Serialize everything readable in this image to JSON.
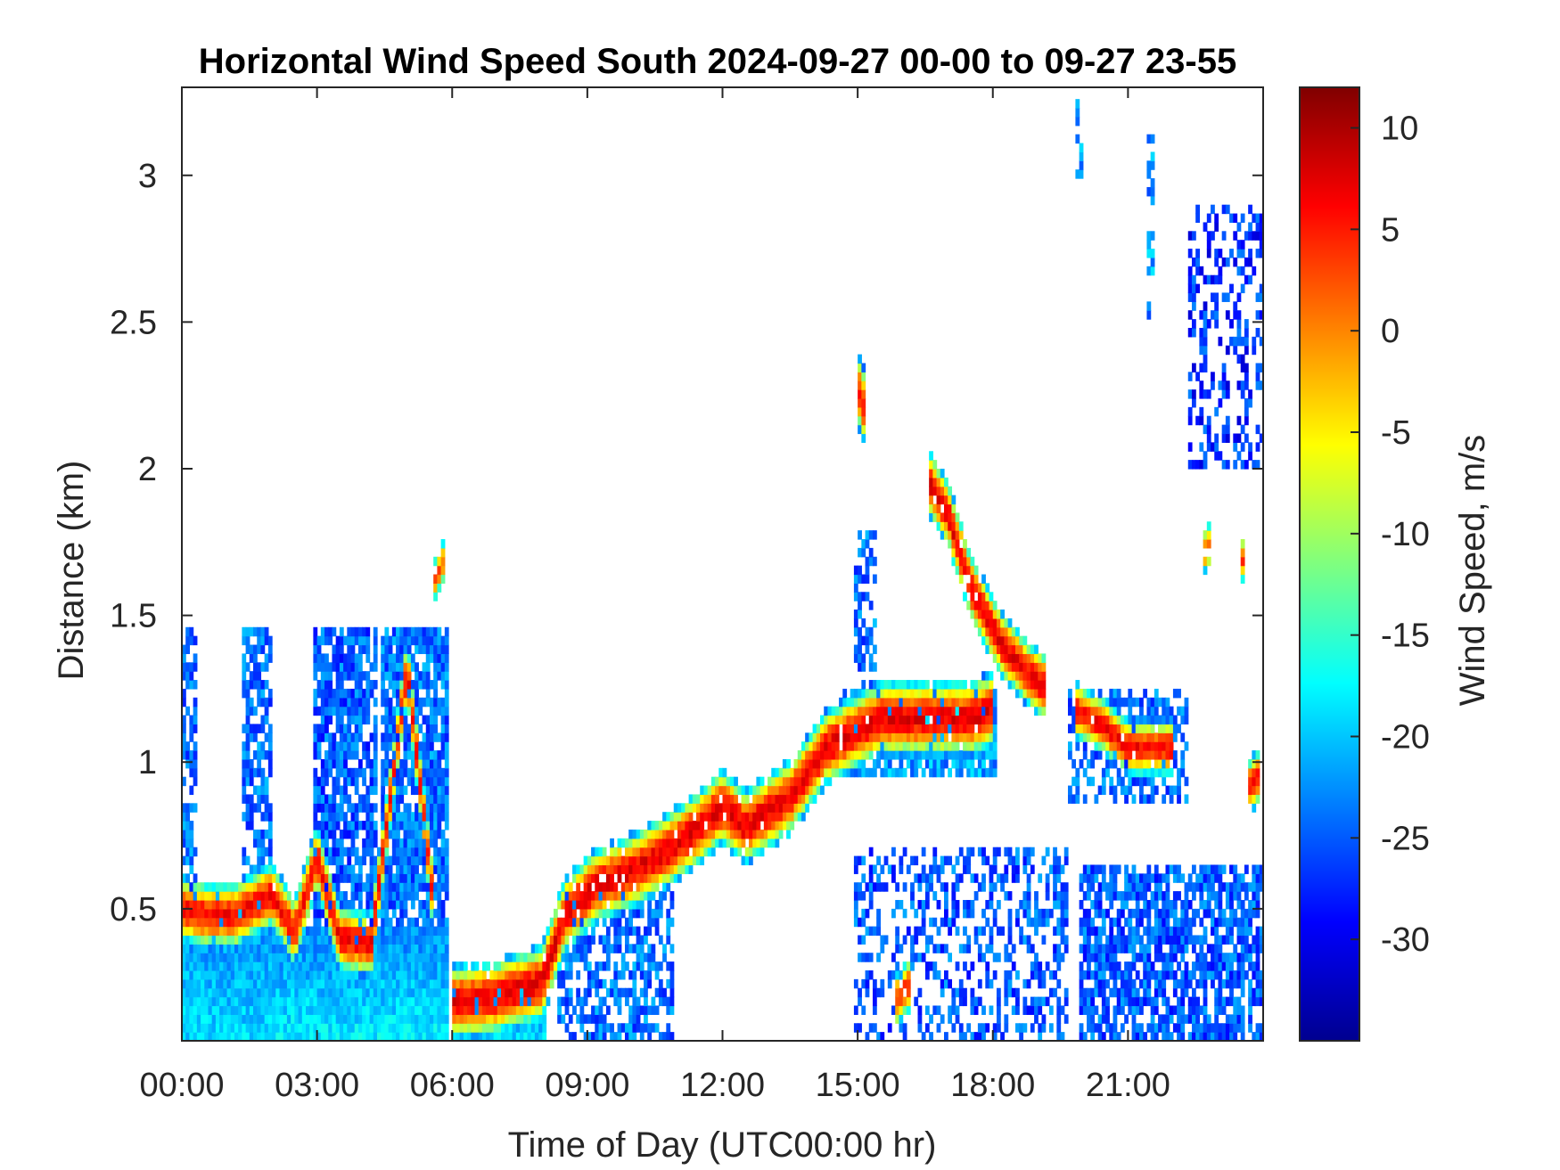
{
  "chart_data": {
    "type": "heatmap",
    "title": "Horizontal Wind Speed South 2024-09-27 00-00 to 09-27 23-55",
    "xlabel": "Time of Day (UTC00:00 hr)",
    "ylabel": "Distance (km)",
    "colorbar_label": "Wind Speed, m/s",
    "x_unit": "hours",
    "xlim": [
      0,
      24
    ],
    "ylim": [
      0.05,
      3.3
    ],
    "clim": [
      -35,
      12
    ],
    "colormap": "jet",
    "x_ticks": [
      0,
      3,
      6,
      9,
      12,
      15,
      18,
      21
    ],
    "x_tick_labels": [
      "00:00",
      "03:00",
      "06:00",
      "09:00",
      "12:00",
      "15:00",
      "18:00",
      "21:00"
    ],
    "y_ticks": [
      0.5,
      1,
      1.5,
      2,
      2.5,
      3
    ],
    "y_tick_labels": [
      "0.5",
      "1",
      "1.5",
      "2",
      "2.5",
      "3"
    ],
    "colorbar_ticks": [
      10,
      5,
      0,
      -5,
      -10,
      -15,
      -20,
      -25,
      -30
    ],
    "colorbar_tick_labels": [
      "10",
      "5",
      "0",
      "-5",
      "-10",
      "-15",
      "-20",
      "-25",
      "-30"
    ],
    "grid": false,
    "legend": "none",
    "color_missing": "#ffffff",
    "time_step_minutes": 5,
    "range_step_km": 0.03,
    "features": [
      {
        "type": "surface_layer",
        "from": 0.0,
        "to": 2.0,
        "y0": 0.05,
        "y1": 0.55,
        "speed_bottom": -19,
        "speed_top": -23
      },
      {
        "type": "surface_layer",
        "from": 2.0,
        "to": 5.9,
        "y0": 0.05,
        "y1": 0.45,
        "speed_bottom": -18,
        "speed_top": -23
      },
      {
        "type": "surface_layer",
        "from": 6.0,
        "to": 8.1,
        "y0": 0.05,
        "y1": 0.25,
        "speed_bottom": -19,
        "speed_top": -23
      },
      {
        "type": "layer_fill",
        "from": 0.0,
        "to": 0.3,
        "y0": 0.5,
        "y1": 1.5,
        "speed": -24,
        "fill": 0.6
      },
      {
        "type": "layer_fill",
        "from": 1.3,
        "to": 2.0,
        "y0": 0.5,
        "y1": 1.45,
        "speed": -24,
        "fill": 0.65
      },
      {
        "type": "layer_fill",
        "from": 2.9,
        "to": 4.3,
        "y0": 0.45,
        "y1": 1.45,
        "speed": -25,
        "fill": 0.8
      },
      {
        "type": "layer_fill",
        "from": 4.4,
        "to": 5.9,
        "y0": 0.45,
        "y1": 1.45,
        "speed": -24,
        "fill": 0.85
      },
      {
        "type": "layer_fill",
        "from": 8.3,
        "to": 10.9,
        "y0": 0.05,
        "y1": 0.55,
        "speed": -24,
        "fill": 0.55
      },
      {
        "type": "layer_fill",
        "from": 14.9,
        "to": 15.4,
        "y0": 1.0,
        "y1": 1.8,
        "speed": -24,
        "fill": 0.45
      },
      {
        "type": "layer_fill",
        "from": 14.7,
        "to": 18.1,
        "y0": 0.95,
        "y1": 1.25,
        "speed": -22,
        "fill": 0.75
      },
      {
        "type": "layer_fill",
        "from": 19.7,
        "to": 22.3,
        "y0": 0.85,
        "y1": 1.25,
        "speed": -24,
        "fill": 0.5
      },
      {
        "type": "layer_fill",
        "from": 14.9,
        "to": 19.7,
        "y0": 0.05,
        "y1": 0.7,
        "speed": -25,
        "fill": 0.4
      },
      {
        "type": "layer_fill",
        "from": 19.9,
        "to": 24.0,
        "y0": 0.05,
        "y1": 0.65,
        "speed": -25,
        "fill": 0.72
      },
      {
        "type": "layer_fill",
        "from": 22.3,
        "to": 24.0,
        "y0": 2.0,
        "y1": 2.9,
        "speed": -27,
        "fill": 0.35
      },
      {
        "type": "layer_fill",
        "from": 21.4,
        "to": 21.6,
        "y0": 2.5,
        "y1": 3.15,
        "speed": -22,
        "fill": 0.5
      },
      {
        "type": "layer_fill",
        "from": 19.8,
        "to": 20.0,
        "y0": 3.0,
        "y1": 3.25,
        "speed": -22,
        "fill": 0.5
      },
      {
        "type": "jet_path",
        "t": [
          0.0,
          0.5,
          1.2,
          2.0,
          2.5,
          3.0,
          3.5,
          4.2,
          5.0,
          5.6
        ],
        "h": [
          0.5,
          0.48,
          0.48,
          0.55,
          0.42,
          0.68,
          0.4,
          0.38,
          1.32,
          0.5
        ],
        "speed": 6,
        "width": 0.07
      },
      {
        "type": "jet_path",
        "t": [
          6.0,
          7.0,
          8.0,
          8.5,
          9.2,
          10.0,
          10.8,
          11.5,
          12.0,
          12.5,
          13.5,
          14.3,
          14.9,
          15.5,
          16.5,
          17.5,
          18.0
        ],
        "h": [
          0.18,
          0.2,
          0.25,
          0.48,
          0.58,
          0.63,
          0.7,
          0.78,
          0.85,
          0.78,
          0.88,
          1.05,
          1.1,
          1.15,
          1.15,
          1.15,
          1.18
        ],
        "speed": 7,
        "width": 0.08
      },
      {
        "type": "jet_path",
        "t": [
          16.6,
          17.0,
          17.5,
          18.2,
          18.8,
          19.2
        ],
        "h": [
          1.95,
          1.85,
          1.6,
          1.4,
          1.3,
          1.25
        ],
        "speed": 7,
        "width": 0.07
      },
      {
        "type": "jet_path",
        "t": [
          19.8,
          20.5,
          21.0,
          22.0
        ],
        "h": [
          1.18,
          1.12,
          1.05,
          1.05
        ],
        "speed": 6,
        "width": 0.06
      },
      {
        "type": "jet_path",
        "t": [
          15.0,
          15.2
        ],
        "h": [
          2.28,
          2.18
        ],
        "speed": 5,
        "width": 0.08
      },
      {
        "type": "jet_path",
        "t": [
          15.8,
          16.2
        ],
        "h": [
          0.18,
          0.25
        ],
        "speed": 4,
        "width": 0.06
      },
      {
        "type": "jet_path",
        "t": [
          5.6,
          5.8
        ],
        "h": [
          1.62,
          1.68
        ],
        "speed": 2,
        "width": 0.05
      },
      {
        "type": "jet_path",
        "t": [
          23.7,
          23.9
        ],
        "h": [
          0.92,
          0.95
        ],
        "speed": 5,
        "width": 0.06
      },
      {
        "type": "jet_path",
        "t": [
          22.7,
          22.8
        ],
        "h": [
          1.72,
          1.74
        ],
        "speed": 3,
        "width": 0.05
      },
      {
        "type": "jet_path",
        "t": [
          23.5,
          23.6
        ],
        "h": [
          1.7,
          1.68
        ],
        "speed": 4,
        "width": 0.05
      }
    ]
  }
}
